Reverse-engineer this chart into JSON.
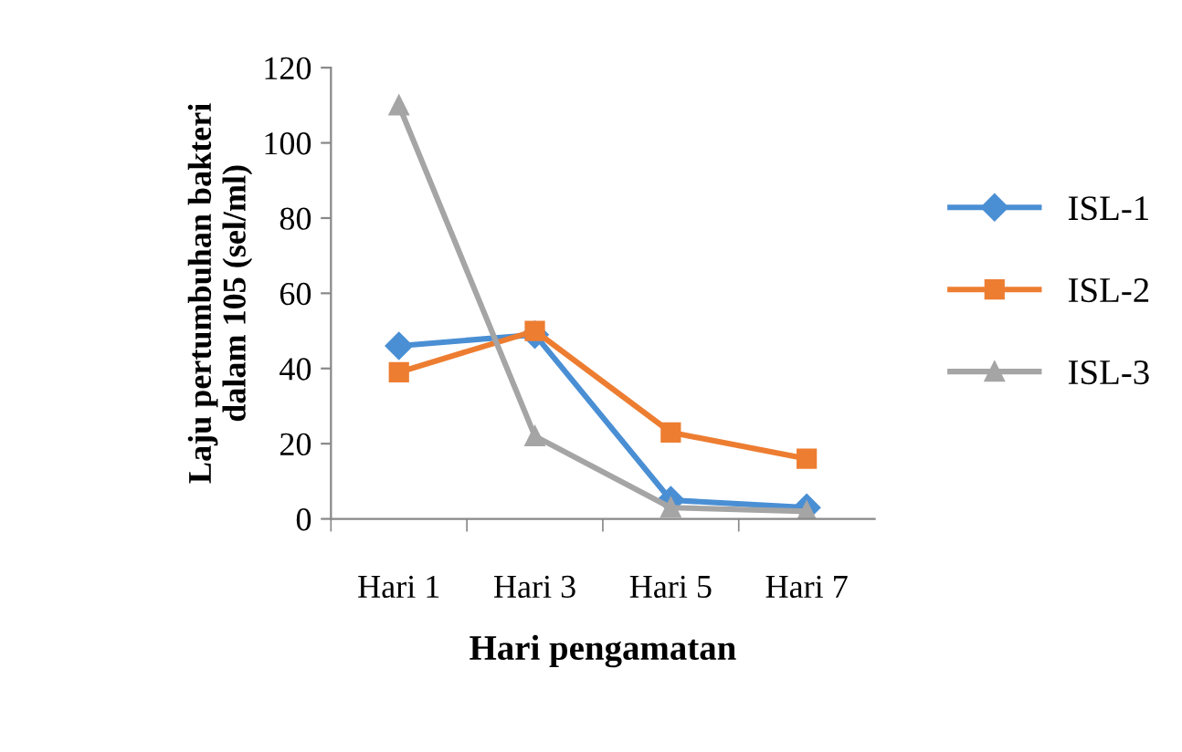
{
  "chart_data": {
    "type": "line",
    "xlabel": "Hari pengamatan",
    "ylabel": "Laju pertumbuhan bakteri\ndalam 105 (sel/ml)",
    "categories": [
      "Hari 1",
      "Hari 3",
      "Hari 5",
      "Hari 7"
    ],
    "series": [
      {
        "name": "ISL-1",
        "color": "#4a8fd4",
        "marker": "diamond",
        "values": [
          46,
          49,
          5,
          3
        ]
      },
      {
        "name": "ISL-2",
        "color": "#ed7d31",
        "marker": "square",
        "values": [
          39,
          50,
          23,
          16
        ]
      },
      {
        "name": "ISL-3",
        "color": "#a5a5a5",
        "marker": "triangle",
        "values": [
          110,
          22,
          3,
          2
        ]
      }
    ],
    "ylim": [
      0,
      120
    ],
    "yticks": [
      0,
      20,
      40,
      60,
      80,
      100,
      120
    ],
    "grid": false,
    "legend": "right"
  }
}
